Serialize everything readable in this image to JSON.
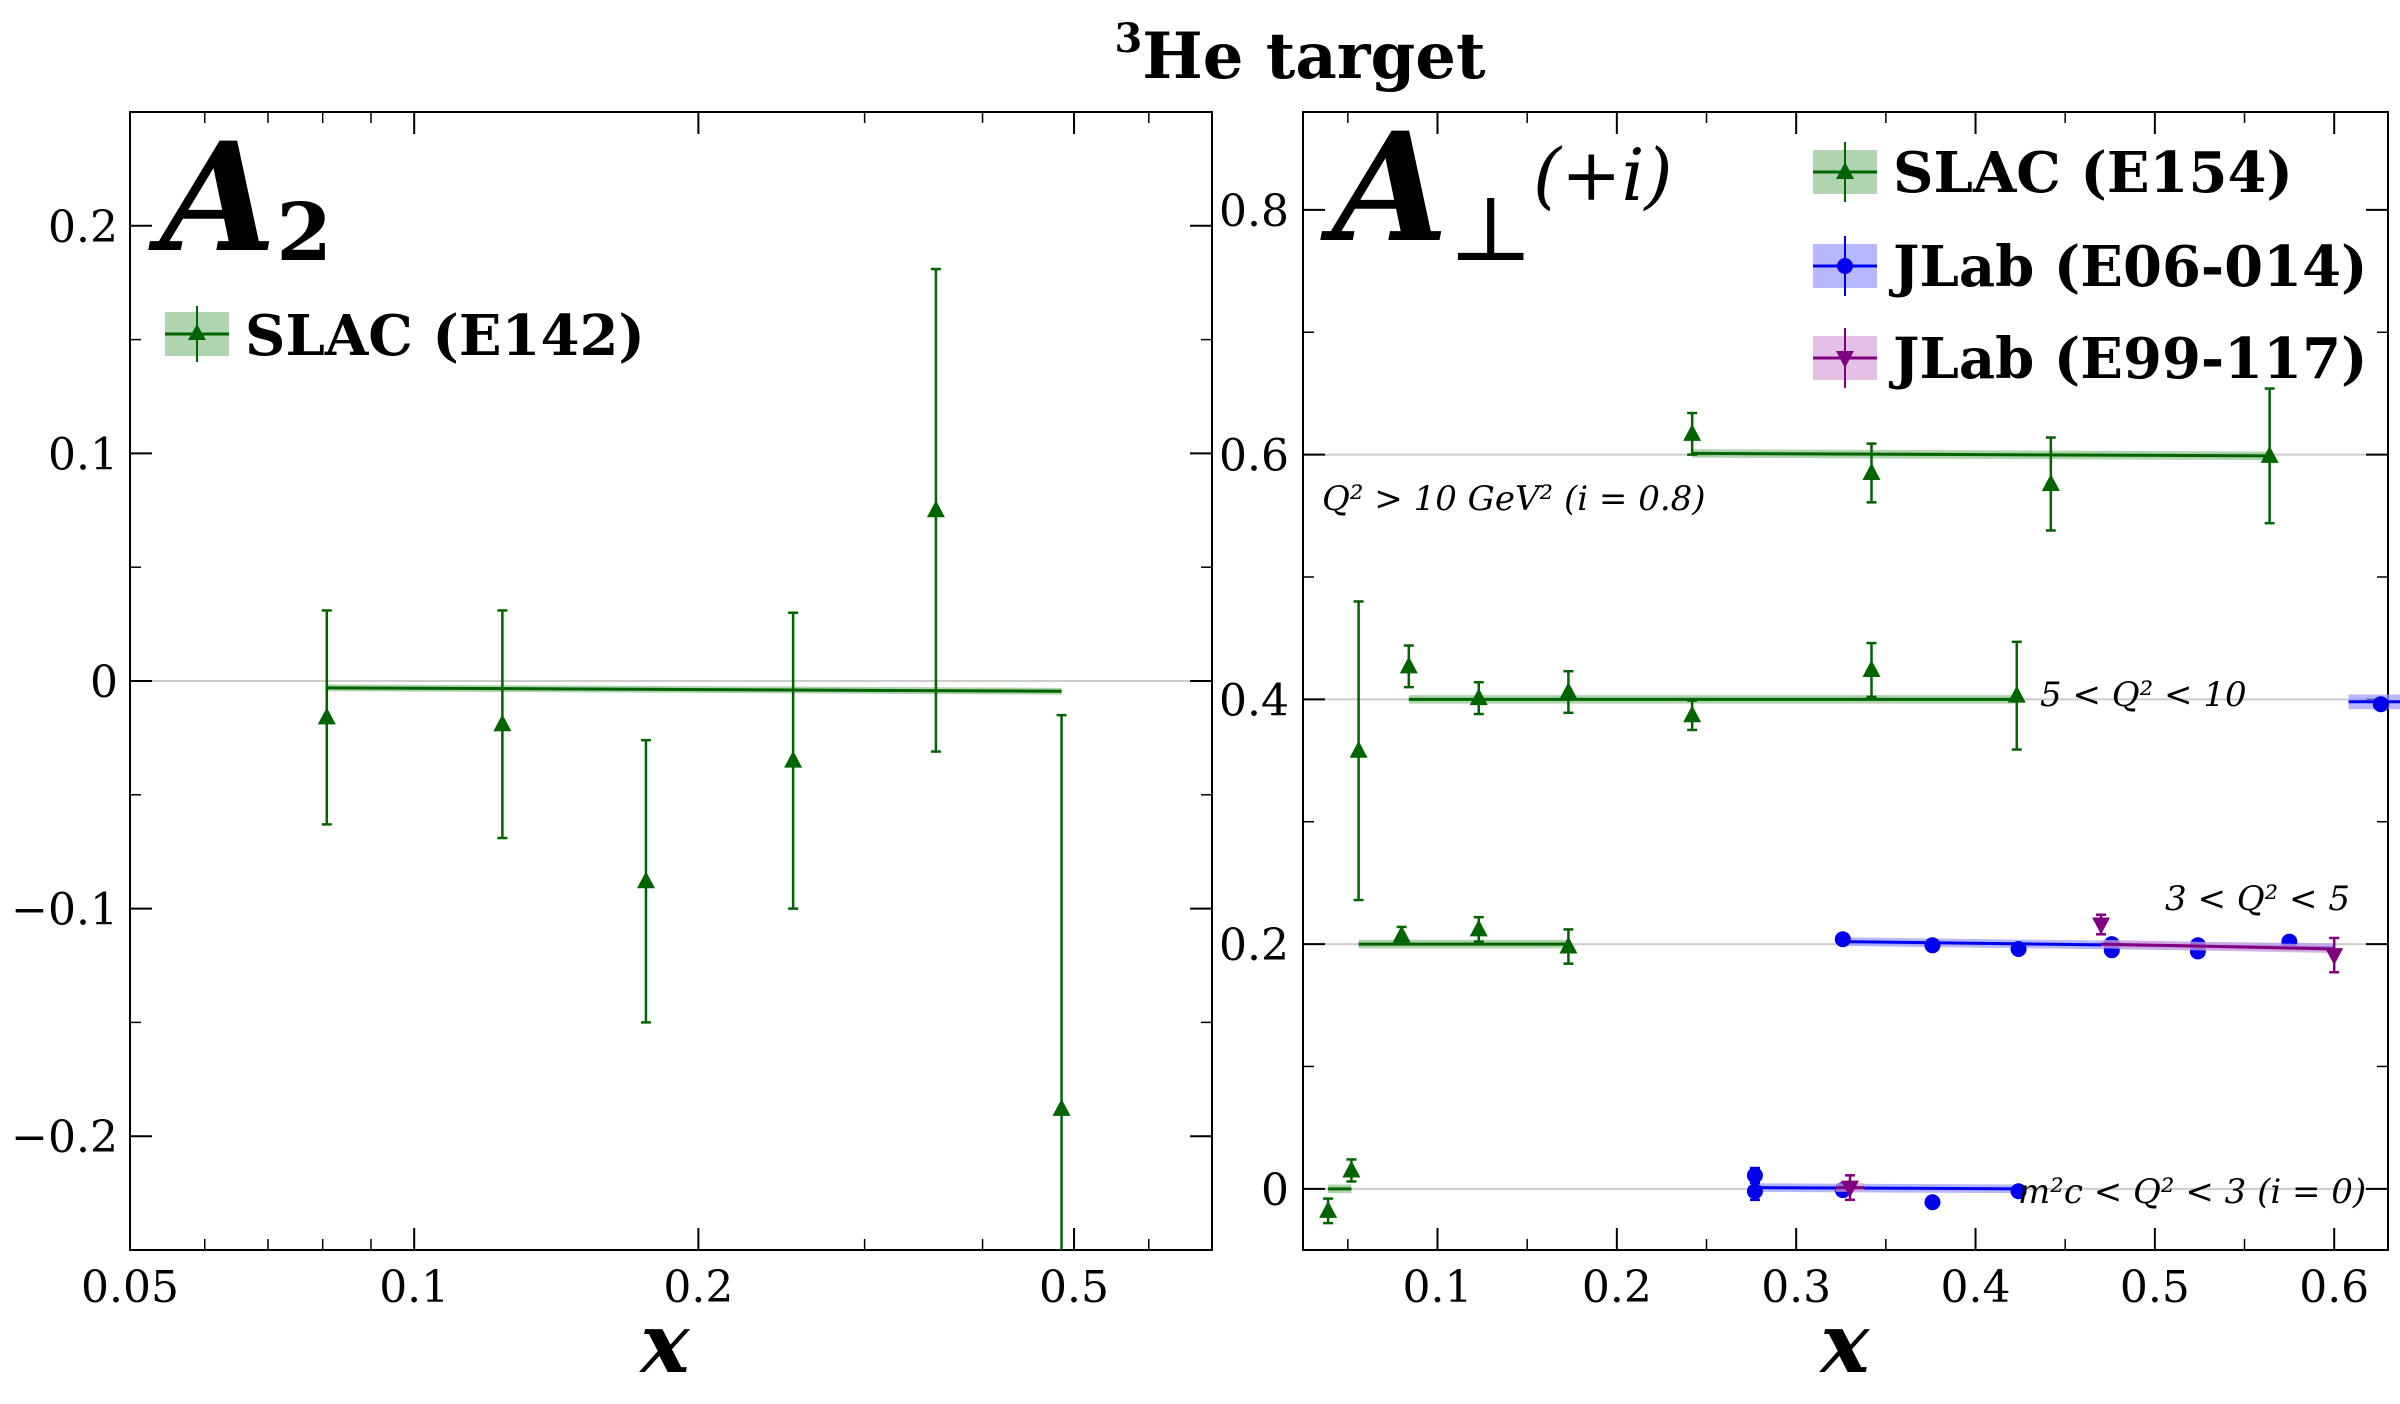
{
  "title": "He target",
  "title_sup": "3",
  "chart_data": [
    {
      "type": "scatter",
      "panel": "left",
      "panel_label": "A",
      "panel_label_sub": "2",
      "xlabel": "x",
      "ylabel": "",
      "xscale": "log",
      "xlim": [
        0.05,
        0.7
      ],
      "ylim": [
        -0.25,
        0.25
      ],
      "xticks": [
        0.05,
        0.1,
        0.2,
        0.5
      ],
      "xtick_labels": [
        "0.05",
        "0.1",
        "0.2",
        "0.5"
      ],
      "yticks": [
        -0.2,
        -0.1,
        0,
        0.1,
        0.2
      ],
      "ytick_labels": [
        "−0.2",
        "−0.1",
        "0",
        "0.1",
        "0.2"
      ],
      "legend_position": "upper-left",
      "series": [
        {
          "name": "SLAC (E142)",
          "color": "#006400",
          "marker": "triangle-up",
          "x": [
            0.0808,
            0.124,
            0.176,
            0.252,
            0.357,
            0.485
          ],
          "y": [
            -0.016,
            -0.019,
            -0.088,
            -0.035,
            0.075,
            -0.188
          ],
          "yerr": [
            0.047,
            0.05,
            0.062,
            0.065,
            0.106,
            0.173
          ],
          "fit": {
            "x": [
              0.0808,
              0.485
            ],
            "y": [
              -0.003,
              -0.0045
            ],
            "band": 0.0015
          }
        }
      ],
      "hlines": [
        0
      ]
    },
    {
      "type": "scatter",
      "panel": "right",
      "panel_label": "A",
      "panel_label_sub": "⊥",
      "panel_label_suffix": "(+i)",
      "xlabel": "x",
      "ylabel": "",
      "xlim": [
        0.025,
        0.63
      ],
      "ylim": [
        -0.05,
        0.88
      ],
      "xticks": [
        0.1,
        0.2,
        0.3,
        0.4,
        0.5,
        0.6
      ],
      "xtick_labels": [
        "0.1",
        "0.2",
        "0.3",
        "0.4",
        "0.5",
        "0.6"
      ],
      "yticks": [
        0,
        0.2,
        0.4,
        0.6,
        0.8
      ],
      "ytick_labels": [
        "0",
        "0.2",
        "0.4",
        "0.6",
        "0.8"
      ],
      "legend_position": "upper-right",
      "hlines": [
        0,
        0.2,
        0.4,
        0.6
      ],
      "annotations": [
        {
          "id": "q2_gt10",
          "text": "Q² > 10 GeV² (i = 0.8)"
        },
        {
          "id": "q2_5_10",
          "text": "5 < Q² < 10"
        },
        {
          "id": "q2_3_5",
          "text": "3 < Q² < 5"
        },
        {
          "id": "q2_mc_3",
          "text": "m²c < Q² < 3 (i = 0)"
        }
      ],
      "series": [
        {
          "name": "SLAC (E154)",
          "color": "#006400",
          "band_color": "#8fc08f",
          "marker": "triangle-up",
          "groups": [
            {
              "x": [
                0.242,
                0.342,
                0.442,
                0.564
              ],
              "y": [
                0.617,
                0.585,
                0.576,
                0.599
              ],
              "yerr": [
                0.017,
                0.024,
                0.038,
                0.055
              ],
              "fit": {
                "x": [
                  0.242,
                  0.564
                ],
                "y": [
                  0.601,
                  0.599
                ]
              }
            },
            {
              "x": [
                0.056,
                0.084,
                0.123,
                0.173,
                0.242,
                0.342,
                0.423
              ],
              "y": [
                0.358,
                0.427,
                0.401,
                0.406,
                0.387,
                0.424,
                0.403
              ],
              "yerr": [
                0.122,
                0.017,
                0.013,
                0.017,
                0.012,
                0.022,
                0.044
              ],
              "fit": {
                "x": [
                  0.084,
                  0.423
                ],
                "y": [
                  0.4,
                  0.4
                ]
              }
            },
            {
              "x": [
                0.08,
                0.123,
                0.173
              ],
              "y": [
                0.207,
                0.212,
                0.198
              ],
              "yerr": [
                0.007,
                0.01,
                0.014
              ],
              "fit": {
                "x": [
                  0.056,
                  0.173
                ],
                "y": [
                  0.2,
                  0.2
                ]
              }
            },
            {
              "x": [
                0.039,
                0.052
              ],
              "y": [
                -0.018,
                0.015
              ],
              "yerr": [
                0.01,
                0.009
              ],
              "fit": {
                "x": [
                  0.039,
                  0.052
                ],
                "y": [
                  0.0,
                  0.0
                ]
              }
            }
          ]
        },
        {
          "name": "JLab (E06-014)",
          "color": "#0000ee",
          "band_color": "#9999ff",
          "marker": "circle",
          "groups": [
            {
              "x": [
                0.626
              ],
              "y": [
                0.396
              ],
              "yerr": [
                0.0
              ],
              "fit": {
                "x": [
                  0.608,
                  0.646
                ],
                "y": [
                  0.398,
                  0.398
                ]
              }
            },
            {
              "x": [
                0.326,
                0.376,
                0.424,
                0.476,
                0.476,
                0.524,
                0.524,
                0.575
              ],
              "y": [
                0.204,
                0.199,
                0.196,
                0.2,
                0.195,
                0.199,
                0.194,
                0.202
              ],
              "yerr": [
                0,
                0,
                0,
                0,
                0,
                0,
                0,
                0
              ],
              "fit": {
                "x": [
                  0.326,
                  0.6
                ],
                "y": [
                  0.202,
                  0.197
                ]
              }
            },
            {
              "x": [
                0.277,
                0.277,
                0.326,
                0.376,
                0.424
              ],
              "y": [
                0.011,
                -0.002,
                -0.001,
                -0.011,
                -0.002
              ],
              "yerr": [
                0.006,
                0.007,
                0,
                0,
                0
              ],
              "fit": {
                "x": [
                  0.277,
                  0.424
                ],
                "y": [
                  0.001,
                  0.0
                ]
              }
            }
          ]
        },
        {
          "name": "JLab (E99-117)",
          "color": "#800080",
          "band_color": "#d9a6d9",
          "marker": "triangle-down",
          "groups": [
            {
              "x": [
                0.47,
                0.6
              ],
              "y": [
                0.216,
                0.191
              ],
              "yerr": [
                0.008,
                0.014
              ],
              "fit": {
                "x": [
                  0.47,
                  0.6
                ],
                "y": [
                  0.2,
                  0.196
                ]
              }
            },
            {
              "x": [
                0.33
              ],
              "y": [
                0.001
              ],
              "yerr": [
                0.01
              ],
              "fit": {
                "x": [
                  0.322,
                  0.338
                ],
                "y": [
                  0.001,
                  0.001
                ]
              }
            }
          ]
        }
      ]
    }
  ]
}
